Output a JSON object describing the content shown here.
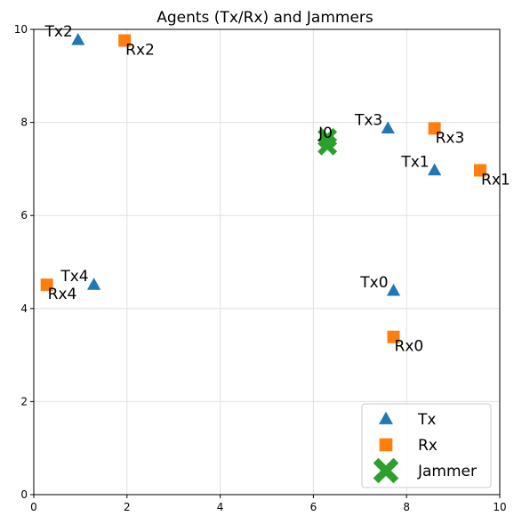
{
  "chart_data": {
    "type": "scatter",
    "title": "Agents (Tx/Rx) and Jammers",
    "xlim": [
      0,
      10
    ],
    "ylim": [
      0,
      10
    ],
    "xticks": [
      0,
      2,
      4,
      6,
      8,
      10
    ],
    "yticks": [
      0,
      2,
      4,
      6,
      8,
      10
    ],
    "grid": true,
    "legend_position": "lower-right",
    "series": [
      {
        "name": "Tx",
        "marker": "triangle",
        "color": "#1f77b4",
        "points": [
          {
            "label": "Tx0",
            "x": 7.72,
            "y": 4.38
          },
          {
            "label": "Tx1",
            "x": 8.6,
            "y": 6.97
          },
          {
            "label": "Tx2",
            "x": 0.95,
            "y": 9.77
          },
          {
            "label": "Tx3",
            "x": 7.6,
            "y": 7.87
          },
          {
            "label": "Tx4",
            "x": 1.29,
            "y": 4.51
          }
        ]
      },
      {
        "name": "Rx",
        "marker": "square",
        "color": "#ff7f0e",
        "points": [
          {
            "label": "Rx0",
            "x": 7.72,
            "y": 3.39
          },
          {
            "label": "Rx1",
            "x": 9.58,
            "y": 6.97
          },
          {
            "label": "Rx2",
            "x": 1.95,
            "y": 9.76
          },
          {
            "label": "Rx3",
            "x": 8.6,
            "y": 7.87
          },
          {
            "label": "Rx4",
            "x": 0.28,
            "y": 4.51
          }
        ]
      },
      {
        "name": "Jammer",
        "marker": "x",
        "color": "#2ca02c",
        "points": [
          {
            "label": "J0",
            "x": 6.3,
            "y": 7.67
          },
          {
            "label": "",
            "x": 6.3,
            "y": 7.5
          }
        ]
      }
    ]
  }
}
